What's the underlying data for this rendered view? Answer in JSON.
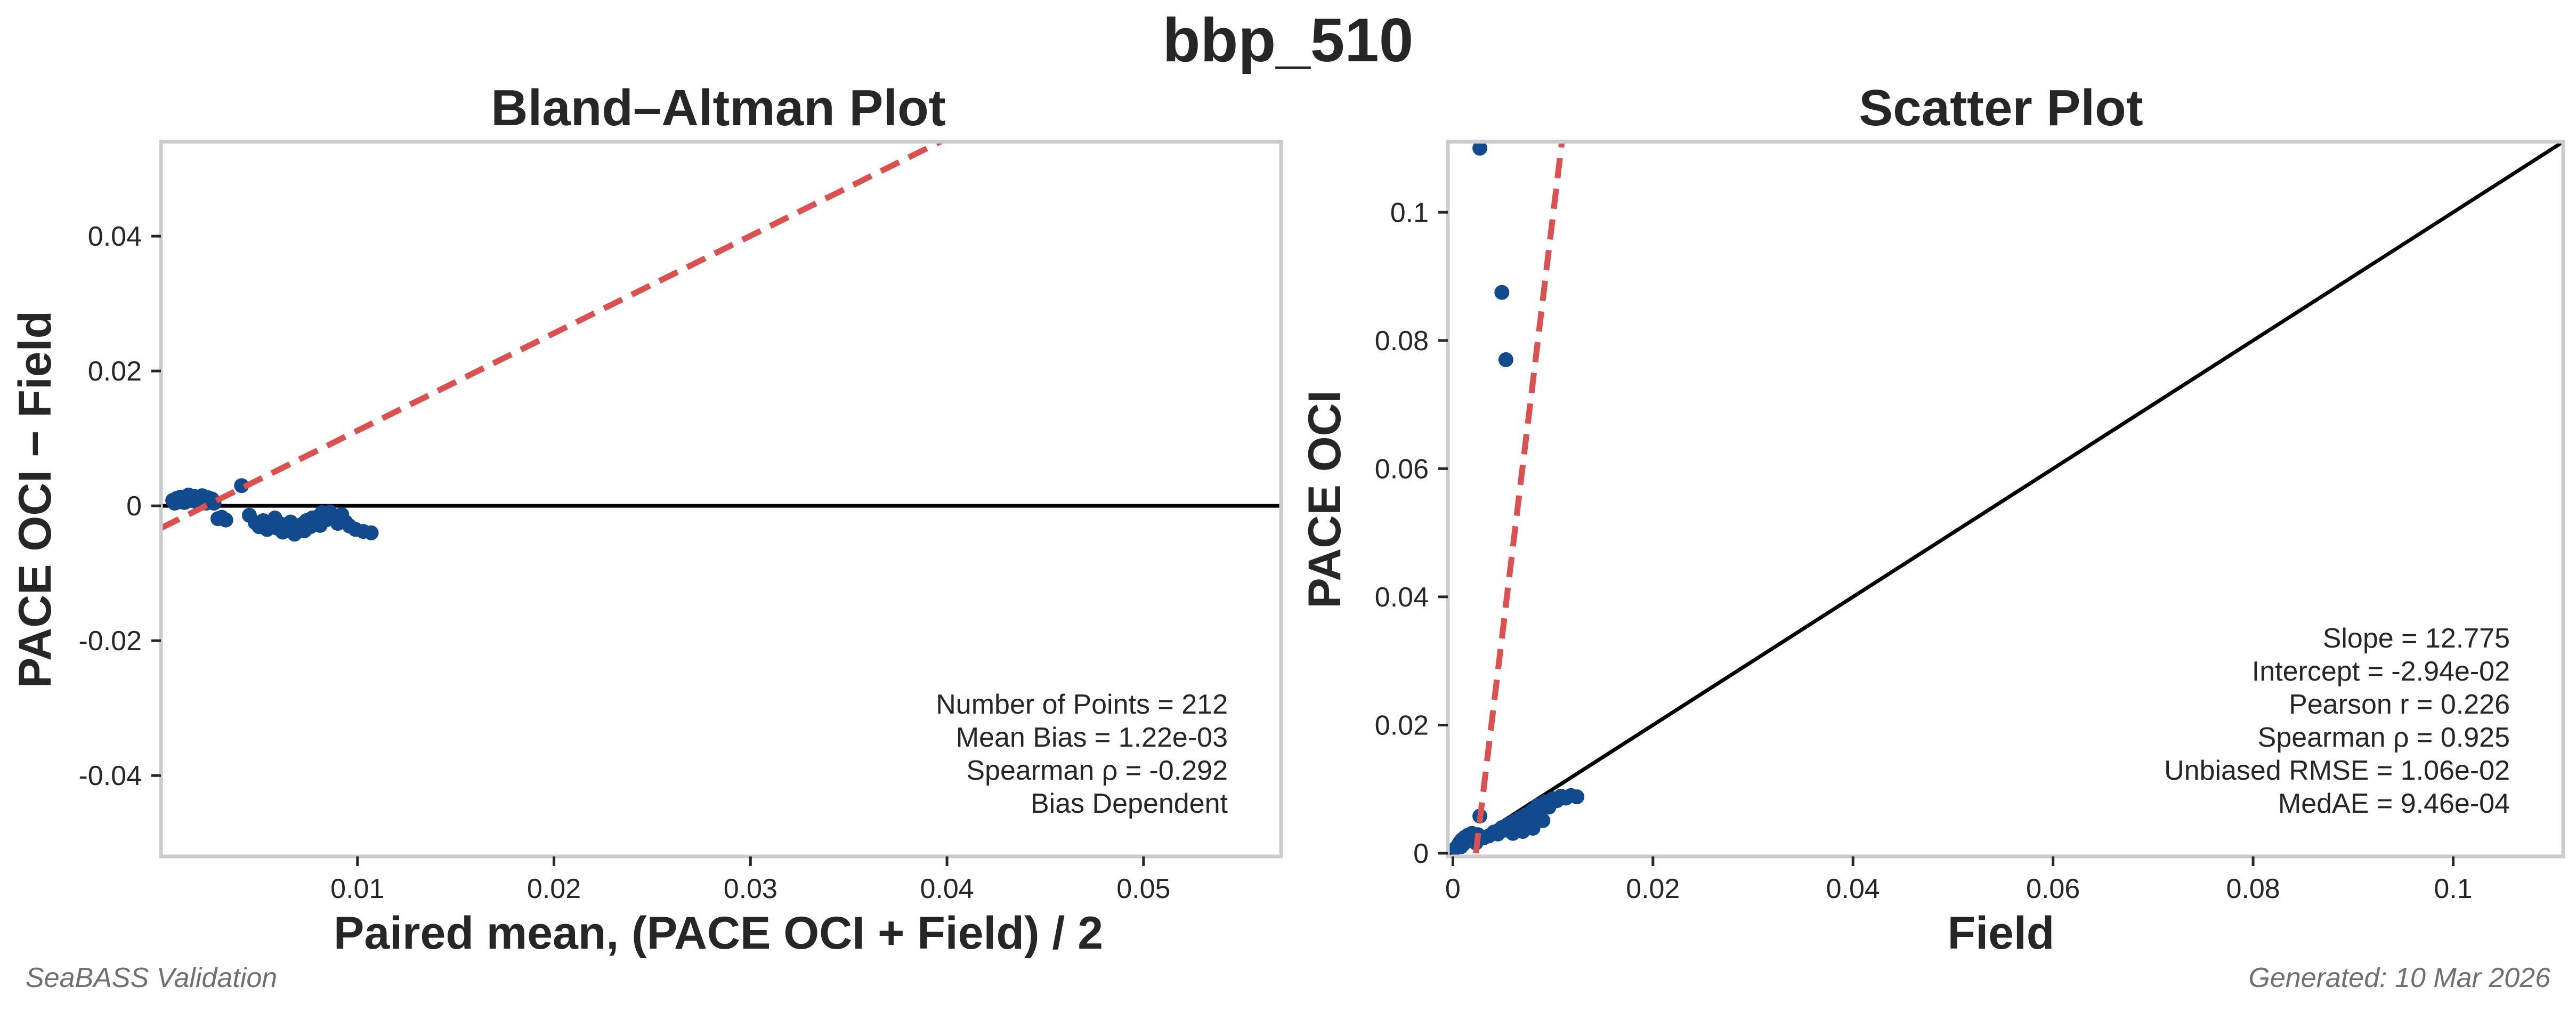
{
  "suptitle": "bbp_510",
  "footer": {
    "left": "SeaBASS Validation",
    "right": "Generated: 10 Mar 2026"
  },
  "colors": {
    "points": "#114b8e",
    "fit_line": "#dc5050",
    "reference_line": "#000000",
    "frame": "#cccccc",
    "text": "#262626",
    "footer_text": "#707070"
  },
  "chart_data": [
    {
      "type": "scatter",
      "title": "Bland–Altman Plot",
      "xlabel": "Paired mean, (PACE OCI + Field) / 2",
      "ylabel": "PACE OCI − Field",
      "xlim": [
        0,
        0.057
      ],
      "ylim": [
        -0.052,
        0.054
      ],
      "xticks": [
        0.01,
        0.02,
        0.03,
        0.04,
        0.05
      ],
      "xtick_labels": [
        "0.01",
        "0.02",
        "0.03",
        "0.04",
        "0.05"
      ],
      "yticks": [
        0.04,
        0.02,
        0,
        -0.02,
        -0.04
      ],
      "ytick_labels": [
        "0.04",
        "0.02",
        "0",
        "-0.02",
        "-0.04"
      ],
      "grid": false,
      "reference_line": {
        "style": "solid",
        "y": 0
      },
      "fit_line": {
        "style": "dashed",
        "points": [
          [
            0,
            -0.0033
          ],
          [
            0.04,
            0.0545
          ]
        ]
      },
      "stats": [
        "Number of Points = 212",
        "Mean Bias = 1.22e-03",
        "Spearman ρ = -0.292",
        "Bias Dependent"
      ],
      "points": [
        [
          0.0006,
          0.0008
        ],
        [
          0.0007,
          0.0004
        ],
        [
          0.0008,
          0.0011
        ],
        [
          0.0009,
          0.0006
        ],
        [
          0.001,
          0.0013
        ],
        [
          0.0011,
          0.0009
        ],
        [
          0.0012,
          0.0005
        ],
        [
          0.0013,
          0.0012
        ],
        [
          0.0014,
          0.0016
        ],
        [
          0.0015,
          0.0008
        ],
        [
          0.0016,
          0.0011
        ],
        [
          0.0017,
          0.0014
        ],
        [
          0.0018,
          0.0006
        ],
        [
          0.0019,
          0.001
        ],
        [
          0.002,
          0.0013
        ],
        [
          0.0021,
          0.0015
        ],
        [
          0.0022,
          0.0009
        ],
        [
          0.0023,
          0.0004
        ],
        [
          0.0024,
          0.0012
        ],
        [
          0.0025,
          0.0007
        ],
        [
          0.0026,
          0.001
        ],
        [
          0.0027,
          0.0004
        ],
        [
          0.0029,
          -0.0019
        ],
        [
          0.0031,
          -0.0017
        ],
        [
          0.0033,
          -0.0021
        ],
        [
          0.0041,
          0.003
        ],
        [
          0.0045,
          -0.0014
        ],
        [
          0.0048,
          -0.0025
        ],
        [
          0.005,
          -0.0031
        ],
        [
          0.0052,
          -0.0022
        ],
        [
          0.0054,
          -0.0035
        ],
        [
          0.0056,
          -0.0028
        ],
        [
          0.0058,
          -0.0018
        ],
        [
          0.0059,
          -0.0033
        ],
        [
          0.0061,
          -0.0027
        ],
        [
          0.0062,
          -0.0039
        ],
        [
          0.0064,
          -0.003
        ],
        [
          0.0066,
          -0.0024
        ],
        [
          0.0067,
          -0.0035
        ],
        [
          0.0068,
          -0.0042
        ],
        [
          0.007,
          -0.0033
        ],
        [
          0.0072,
          -0.0027
        ],
        [
          0.0073,
          -0.0037
        ],
        [
          0.0074,
          -0.0022
        ],
        [
          0.0076,
          -0.0031
        ],
        [
          0.0077,
          -0.0018
        ],
        [
          0.0078,
          -0.0026
        ],
        [
          0.008,
          -0.0016
        ],
        [
          0.0081,
          -0.0029
        ],
        [
          0.0082,
          -0.001
        ],
        [
          0.0084,
          -0.0021
        ],
        [
          0.0086,
          -0.0009
        ],
        [
          0.0088,
          -0.0018
        ],
        [
          0.009,
          -0.0026
        ],
        [
          0.0092,
          -0.0013
        ],
        [
          0.0094,
          -0.0024
        ],
        [
          0.0096,
          -0.003
        ],
        [
          0.0099,
          -0.0035
        ],
        [
          0.0103,
          -0.0038
        ],
        [
          0.0107,
          -0.004
        ]
      ]
    },
    {
      "type": "scatter",
      "title": "Scatter Plot",
      "xlabel": "Field",
      "ylabel": "PACE OCI",
      "xlim": [
        -0.0005,
        0.111
      ],
      "ylim": [
        -0.0005,
        0.111
      ],
      "xticks": [
        0,
        0.02,
        0.04,
        0.06,
        0.08,
        0.1
      ],
      "xtick_labels": [
        "0",
        "0.02",
        "0.04",
        "0.06",
        "0.08",
        "0.1"
      ],
      "yticks": [
        0,
        0.02,
        0.04,
        0.06,
        0.08,
        0.1
      ],
      "ytick_labels": [
        "0",
        "0.02",
        "0.04",
        "0.06",
        "0.08",
        "0.1"
      ],
      "grid": false,
      "reference_line": {
        "style": "solid",
        "points": [
          [
            -0.0005,
            -0.0005
          ],
          [
            0.111,
            0.111
          ]
        ]
      },
      "fit_line": {
        "style": "dashed",
        "points": [
          [
            0.0023,
            0.0
          ],
          [
            0.0109,
            0.111
          ]
        ]
      },
      "stats": [
        "Slope = 12.775",
        "Intercept = -2.94e-02",
        "Pearson r = 0.226",
        "Spearman ρ = 0.925",
        "Unbiased RMSE = 1.06e-02",
        "MedAE = 9.46e-04"
      ],
      "points": [
        [
          0.0027,
          0.11
        ],
        [
          0.0049,
          0.0875
        ],
        [
          0.0053,
          0.077
        ],
        [
          0.0003,
          0.0008
        ],
        [
          0.0005,
          0.0012
        ],
        [
          0.0007,
          0.0017
        ],
        [
          0.0008,
          0.001
        ],
        [
          0.0009,
          0.0021
        ],
        [
          0.0011,
          0.0015
        ],
        [
          0.0012,
          0.0025
        ],
        [
          0.0014,
          0.0019
        ],
        [
          0.0015,
          0.0028
        ],
        [
          0.0017,
          0.0022
        ],
        [
          0.0019,
          0.0031
        ],
        [
          0.0021,
          0.0024
        ],
        [
          0.0023,
          0.0016
        ],
        [
          0.0025,
          0.0029
        ],
        [
          0.0027,
          0.0058
        ],
        [
          0.0031,
          0.0024
        ],
        [
          0.0036,
          0.0027
        ],
        [
          0.0041,
          0.0033
        ],
        [
          0.0045,
          0.003
        ],
        [
          0.0049,
          0.004
        ],
        [
          0.0052,
          0.0036
        ],
        [
          0.0055,
          0.0045
        ],
        [
          0.0058,
          0.0038
        ],
        [
          0.0061,
          0.005
        ],
        [
          0.0064,
          0.0042
        ],
        [
          0.0067,
          0.0055
        ],
        [
          0.007,
          0.0047
        ],
        [
          0.0073,
          0.006
        ],
        [
          0.0076,
          0.0052
        ],
        [
          0.0079,
          0.0066
        ],
        [
          0.0082,
          0.0058
        ],
        [
          0.0085,
          0.0075
        ],
        [
          0.0088,
          0.0068
        ],
        [
          0.0092,
          0.008
        ],
        [
          0.0096,
          0.0072
        ],
        [
          0.01,
          0.0085
        ],
        [
          0.0104,
          0.0082
        ],
        [
          0.0108,
          0.0089
        ],
        [
          0.0113,
          0.0086
        ],
        [
          0.0118,
          0.009
        ],
        [
          0.0124,
          0.0088
        ],
        [
          0.008,
          0.0039
        ],
        [
          0.009,
          0.0051
        ],
        [
          0.007,
          0.0034
        ],
        [
          0.006,
          0.0031
        ]
      ]
    }
  ]
}
